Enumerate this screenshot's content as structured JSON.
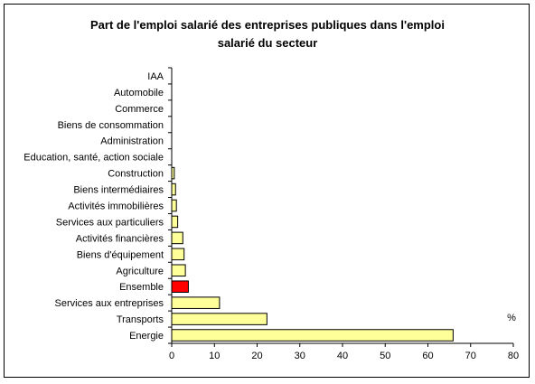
{
  "chart_data": {
    "type": "bar",
    "orientation": "horizontal",
    "title_lines": [
      "Part de l'emploi salarié des entreprises publiques dans l'emploi",
      "salarié du secteur"
    ],
    "unit": "%",
    "xlim": [
      0,
      80
    ],
    "xticks": [
      0,
      10,
      20,
      30,
      40,
      50,
      60,
      70,
      80
    ],
    "grid": false,
    "categories": [
      "IAA",
      "Automobile",
      "Commerce",
      "Biens de consommation",
      "Administration",
      "Education, santé, action sociale",
      "Construction",
      "Biens intermédiaires",
      "Activités immobilières",
      "Services aux particuliers",
      "Activités financières",
      "Biens d'équipement",
      "Agriculture",
      "Ensemble",
      "Services aux entreprises",
      "Transports",
      "Energie"
    ],
    "values": [
      0,
      0,
      0,
      0,
      0,
      0,
      0.6,
      0.9,
      1.1,
      1.4,
      2.6,
      2.9,
      3.2,
      3.9,
      11.2,
      22.3,
      65.9
    ],
    "highlight_category": "Ensemble",
    "colors": {
      "bar": "#ffff99",
      "highlight": "#ff0000",
      "bar_stroke": "#000000",
      "axis": "#000000"
    }
  }
}
